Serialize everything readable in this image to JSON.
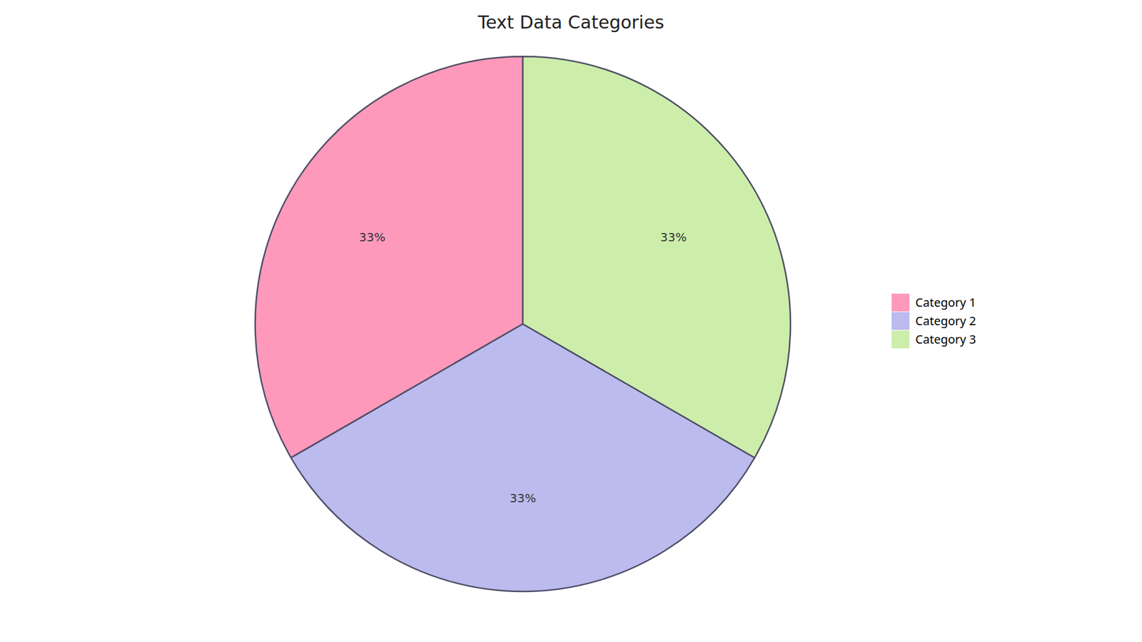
{
  "chart_data": {
    "type": "pie",
    "title": "Text Data Categories",
    "categories": [
      "Category 1",
      "Category 2",
      "Category 3"
    ],
    "values": [
      33,
      33,
      33
    ],
    "value_labels": [
      "33%",
      "33%",
      "33%"
    ],
    "colors": [
      "#FF99BB",
      "#BBBBEE",
      "#CCEEAA"
    ],
    "data_labels": true,
    "legend": "right"
  }
}
